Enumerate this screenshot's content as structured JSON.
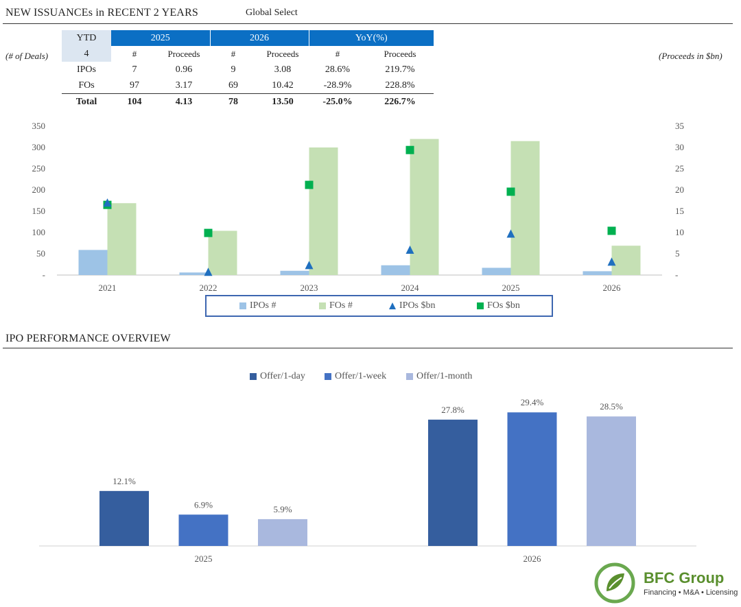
{
  "header": {
    "title": "NEW ISSUANCEs in RECENT 2 YEARS",
    "subtitle": "Global Select",
    "left_axis_note": "(# of Deals)",
    "right_axis_note": "(Proceeds in $bn)"
  },
  "summary_table": {
    "ytd_label": "YTD",
    "ytd_value": "4",
    "year_a": "2025",
    "year_b": "2026",
    "yoy": "YoY(%)",
    "col_count": "#",
    "col_proceeds": "Proceeds",
    "rows": [
      {
        "label": "IPOs",
        "a_count": "7",
        "a_proc": "0.96",
        "b_count": "9",
        "b_proc": "3.08",
        "yoy_count": "28.6%",
        "yoy_proc": "219.7%"
      },
      {
        "label": "FOs",
        "a_count": "97",
        "a_proc": "3.17",
        "b_count": "69",
        "b_proc": "10.42",
        "yoy_count": "-28.9%",
        "yoy_proc": "228.8%"
      },
      {
        "label": "Total",
        "a_count": "104",
        "a_proc": "4.13",
        "b_count": "78",
        "b_proc": "13.50",
        "yoy_count": "-25.0%",
        "yoy_proc": "226.7%"
      }
    ]
  },
  "section2": {
    "title": "IPO PERFORMANCE OVERVIEW"
  },
  "brand": {
    "name": "BFC Group",
    "tagline": "Financing • M&A • Licensing"
  },
  "colors": {
    "ipo_bar": "#9dc3e6",
    "fo_bar": "#c5e0b4",
    "ipo_marker": "#1f6fbf",
    "fo_marker": "#00b050",
    "day": "#355e9e",
    "week": "#4472c4",
    "month": "#a9b8de",
    "table_head": "#0b6fc4"
  },
  "chart_data": [
    {
      "type": "bar",
      "title": "NEW ISSUANCEs in RECENT 2 YEARS",
      "categories": [
        "2021",
        "2022",
        "2023",
        "2024",
        "2025",
        "2026"
      ],
      "y_left": {
        "label": "(# of Deals)",
        "ticks": [
          "-",
          "50",
          "100",
          "150",
          "200",
          "250",
          "300",
          "350"
        ],
        "ylim": [
          0,
          350
        ]
      },
      "y_right": {
        "label": "(Proceeds in $bn)",
        "ticks": [
          "-",
          "5",
          "10",
          "15",
          "20",
          "25",
          "30",
          "35"
        ],
        "ylim": [
          0,
          35
        ]
      },
      "series": [
        {
          "name": "IPOs  #",
          "kind": "bar",
          "axis": "left",
          "values": [
            59,
            6,
            10,
            23,
            17,
            9
          ]
        },
        {
          "name": "FOs #",
          "kind": "bar",
          "axis": "left",
          "values": [
            169,
            104,
            300,
            320,
            315,
            69
          ]
        },
        {
          "name": "IPOs  $bn",
          "kind": "marker-triangle",
          "axis": "right",
          "values": [
            16.9,
            0.6,
            2.2,
            5.8,
            9.6,
            3.0
          ]
        },
        {
          "name": "FOs $bn",
          "kind": "marker-square",
          "axis": "right",
          "values": [
            16.5,
            9.9,
            21.2,
            29.4,
            19.6,
            10.4
          ]
        }
      ]
    },
    {
      "type": "bar",
      "title": "IPO PERFORMANCE OVERVIEW",
      "categories": [
        "2025",
        "2026"
      ],
      "series": [
        {
          "name": "Offer/1-day",
          "values": [
            12.1,
            27.8
          ],
          "labels": [
            "12.1%",
            "27.8%"
          ]
        },
        {
          "name": "Offer/1-week",
          "values": [
            6.9,
            29.4
          ],
          "labels": [
            "6.9%",
            "29.4%"
          ]
        },
        {
          "name": "Offer/1-month",
          "values": [
            5.9,
            28.5
          ],
          "labels": [
            "5.9%",
            "28.5%"
          ]
        }
      ],
      "ylim": [
        0,
        32
      ]
    }
  ]
}
